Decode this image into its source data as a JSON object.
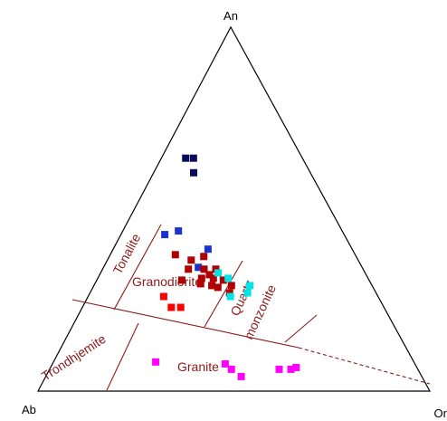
{
  "chart_data": {
    "type": "scatter",
    "diagram": "ternary",
    "title": "",
    "vertices": {
      "top": "An",
      "left": "Ab",
      "right": "Or"
    },
    "field_labels": [
      "Tonalite",
      "Granodiorite",
      "Quartz",
      "monzonite",
      "Trondhjemite",
      "Granite"
    ],
    "colors": {
      "frame": "#000000",
      "field_lines": "#8b1a1a",
      "field_text": "#8b1a1a"
    },
    "series": [
      {
        "color": "#0a0a5a",
        "points": [
          [
            0.6,
            0.298,
            0.102
          ],
          [
            0.64,
            0.278,
            0.082
          ],
          [
            0.64,
            0.298,
            0.062
          ]
        ]
      },
      {
        "color": "#1a33cc",
        "points": [
          [
            0.43,
            0.458,
            0.112
          ],
          [
            0.44,
            0.418,
            0.142
          ],
          [
            0.39,
            0.368,
            0.242
          ],
          [
            0.34,
            0.418,
            0.242
          ]
        ]
      },
      {
        "color": "#b00000",
        "points": [
          [
            0.375,
            0.459,
            0.166
          ],
          [
            0.37,
            0.389,
            0.241
          ],
          [
            0.36,
            0.426,
            0.214
          ],
          [
            0.335,
            0.446,
            0.219
          ],
          [
            0.335,
            0.406,
            0.259
          ],
          [
            0.335,
            0.376,
            0.289
          ],
          [
            0.32,
            0.4,
            0.28
          ],
          [
            0.31,
            0.425,
            0.265
          ],
          [
            0.31,
            0.395,
            0.295
          ],
          [
            0.305,
            0.372,
            0.323
          ],
          [
            0.295,
            0.435,
            0.27
          ],
          [
            0.29,
            0.409,
            0.301
          ],
          [
            0.29,
            0.359,
            0.351
          ],
          [
            0.285,
            0.396,
            0.319
          ],
          [
            0.27,
            0.374,
            0.356
          ],
          [
            0.305,
            0.478,
            0.217
          ]
        ]
      },
      {
        "color": "#ff0000",
        "points": [
          [
            0.26,
            0.547,
            0.193
          ],
          [
            0.23,
            0.543,
            0.227
          ],
          [
            0.23,
            0.519,
            0.251
          ]
        ]
      },
      {
        "color": "#00e5e5",
        "points": [
          [
            0.325,
            0.375,
            0.3
          ],
          [
            0.31,
            0.357,
            0.333
          ],
          [
            0.29,
            0.312,
            0.398
          ],
          [
            0.27,
            0.328,
            0.402
          ],
          [
            0.26,
            0.377,
            0.363
          ]
        ]
      },
      {
        "color": "#ff00ff",
        "points": [
          [
            0.08,
            0.659,
            0.261
          ],
          [
            0.075,
            0.484,
            0.441
          ],
          [
            0.06,
            0.476,
            0.464
          ],
          [
            0.04,
            0.461,
            0.499
          ],
          [
            0.06,
            0.354,
            0.586
          ],
          [
            0.06,
            0.324,
            0.616
          ],
          [
            0.065,
            0.308,
            0.627
          ]
        ]
      }
    ]
  }
}
